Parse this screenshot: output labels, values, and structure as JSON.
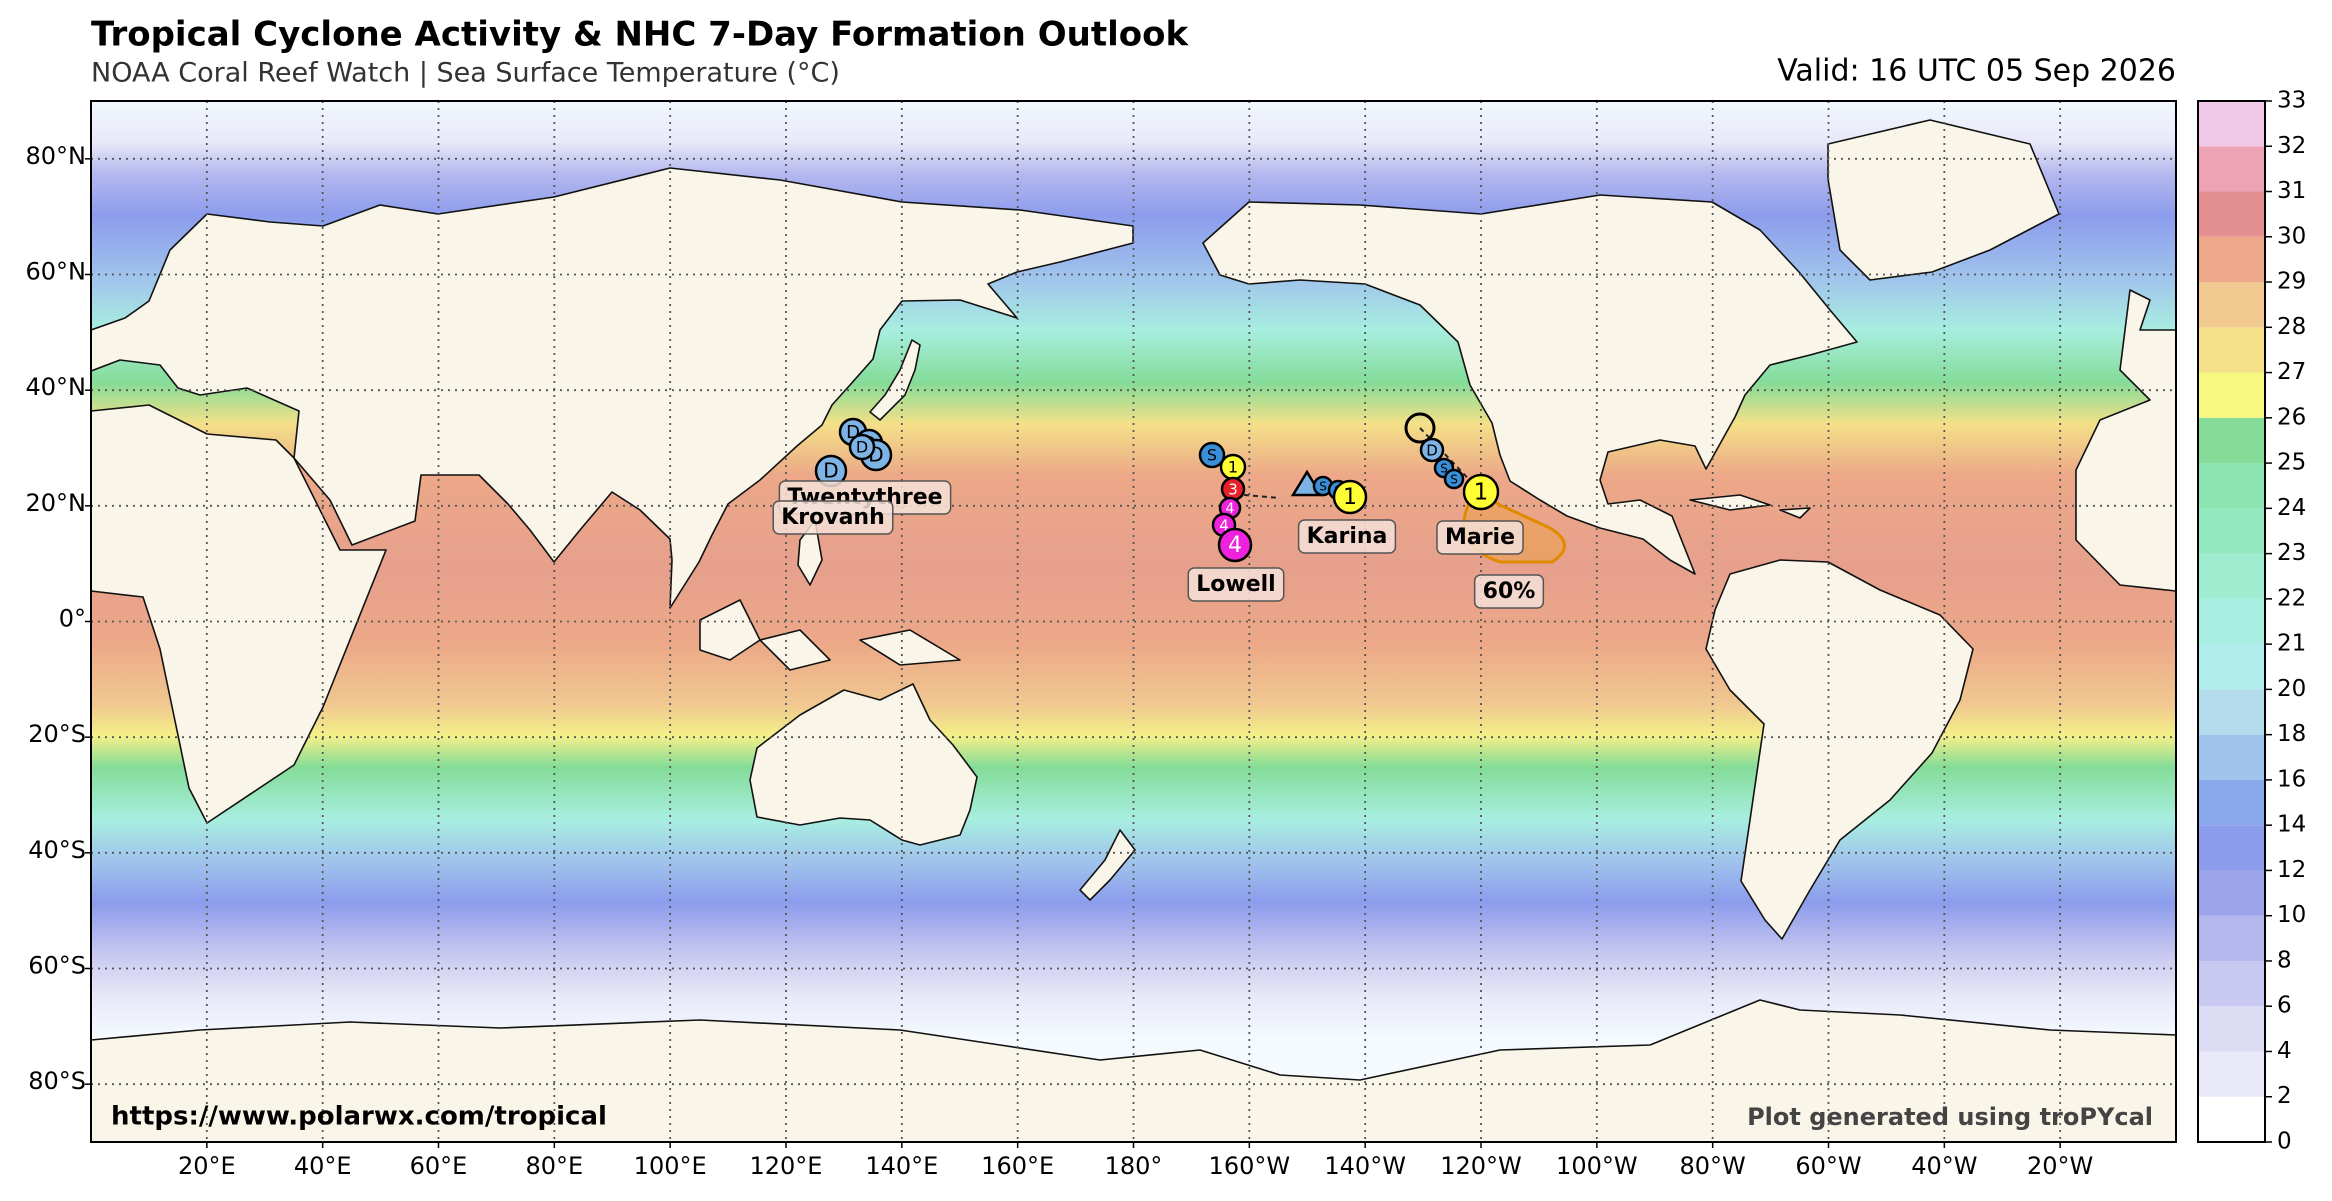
{
  "title": "Tropical Cyclone Activity & NHC 7-Day Formation Outlook",
  "subtitle": "NOAA Coral Reef Watch | Sea Surface Temperature (°C)",
  "valid": "Valid: 16 UTC 05 Sep 2026",
  "map": {
    "grid": true,
    "lon_ticks": [
      {
        "value": 20,
        "label": "20°E"
      },
      {
        "value": 40,
        "label": "40°E"
      },
      {
        "value": 60,
        "label": "60°E"
      },
      {
        "value": 80,
        "label": "80°E"
      },
      {
        "value": 100,
        "label": "100°E"
      },
      {
        "value": 120,
        "label": "120°E"
      },
      {
        "value": 140,
        "label": "140°E"
      },
      {
        "value": 160,
        "label": "160°E"
      },
      {
        "value": 180,
        "label": "180°"
      },
      {
        "value": 200,
        "label": "160°W"
      },
      {
        "value": 220,
        "label": "140°W"
      },
      {
        "value": 240,
        "label": "120°W"
      },
      {
        "value": 260,
        "label": "100°W"
      },
      {
        "value": 280,
        "label": "80°W"
      },
      {
        "value": 300,
        "label": "60°W"
      },
      {
        "value": 320,
        "label": "40°W"
      },
      {
        "value": 340,
        "label": "20°W"
      }
    ],
    "lat_ticks": [
      {
        "value": 80,
        "label": "80°N"
      },
      {
        "value": 60,
        "label": "60°N"
      },
      {
        "value": 40,
        "label": "40°N"
      },
      {
        "value": 20,
        "label": "20°N"
      },
      {
        "value": 0,
        "label": "0°"
      },
      {
        "value": -20,
        "label": "20°S"
      },
      {
        "value": -40,
        "label": "40°S"
      },
      {
        "value": -60,
        "label": "60°S"
      },
      {
        "value": -80,
        "label": "80°S"
      }
    ]
  },
  "colorbar": {
    "ticks": [
      0,
      2,
      4,
      6,
      8,
      10,
      12,
      14,
      16,
      18,
      20,
      21,
      22,
      23,
      24,
      25,
      26,
      27,
      28,
      29,
      30,
      31,
      32,
      33
    ],
    "colors": [
      "#ffffff",
      "#e8e8f8",
      "#dcdcf5",
      "#c8c8f0",
      "#b4b8ee",
      "#9ca4ea",
      "#8c9cec",
      "#8aa8ec",
      "#a0c4ec",
      "#b4dcec",
      "#b0ecec",
      "#a8eee0",
      "#a0ecd0",
      "#94e8c0",
      "#8ce4b0",
      "#84dc98",
      "#f8f880",
      "#f4e088",
      "#f0c890",
      "#eca888",
      "#e49090",
      "#eca4b4",
      "#f0c8e8"
    ]
  },
  "marker_colors": {
    "D": "#7eb3e6",
    "S": "#3a8fd8",
    "1": "#ffff33",
    "3": "#e8202a",
    "4": "#ee22dd"
  },
  "storms": [
    {
      "name": "Twentythree",
      "markers": [
        "D",
        "D",
        "D",
        "D",
        "D"
      ]
    },
    {
      "name": "Krovanh"
    },
    {
      "name": "Lowell",
      "markers": [
        "S",
        "1",
        "3",
        "4",
        "4",
        "4"
      ]
    },
    {
      "name": "Karina",
      "markers": [
        "S",
        "S",
        "1"
      ]
    },
    {
      "name": "Marie",
      "markers": [
        "D",
        "S",
        "S",
        "1"
      ]
    }
  ],
  "outlook": {
    "label": "60%"
  },
  "footer": {
    "url": "https://www.polarwx.com/tropical",
    "credit": "Plot generated using troPYcal"
  }
}
